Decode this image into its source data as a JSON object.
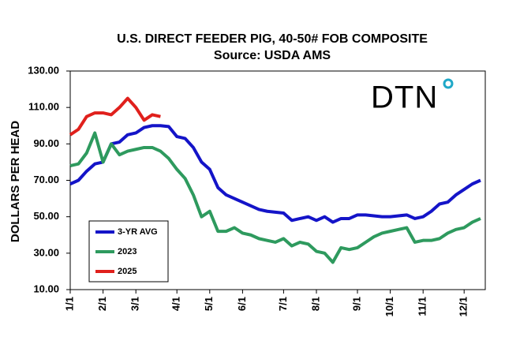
{
  "chart_data": {
    "type": "line",
    "title": "U.S. DIRECT FEEDER PIG, 40-50# FOB COMPOSITE",
    "subtitle": "Source:  USDA AMS",
    "y_label": "DOLLARS PER HEAD",
    "logo": "DTN",
    "categories": [
      "1/1",
      null,
      null,
      null,
      "2/1",
      null,
      null,
      null,
      "3/1",
      null,
      null,
      null,
      null,
      "4/1",
      null,
      null,
      null,
      "5/1",
      null,
      null,
      null,
      "6/1",
      null,
      null,
      null,
      null,
      "7/1",
      null,
      null,
      null,
      "8/1",
      null,
      null,
      null,
      null,
      "9/1",
      null,
      null,
      null,
      "10/1",
      null,
      null,
      null,
      "11/1",
      null,
      null,
      null,
      null,
      "12/1",
      null,
      null
    ],
    "series": [
      {
        "name": "3-YR AVG",
        "color": "#1414c8",
        "values": [
          68,
          70,
          75,
          79,
          80,
          90,
          91,
          95,
          96,
          99,
          100,
          100,
          99.5,
          94,
          93,
          88,
          80,
          76,
          66,
          62,
          60,
          58,
          56,
          54,
          53,
          52.5,
          52,
          48,
          49,
          50,
          48,
          50,
          47,
          49,
          49,
          51,
          51,
          50.5,
          50,
          50,
          50.5,
          51,
          49,
          50,
          53,
          57,
          58,
          62,
          65,
          68,
          70
        ]
      },
      {
        "name": "2023",
        "color": "#2e9a5e",
        "values": [
          78,
          79,
          85,
          96,
          80,
          90,
          84,
          86,
          87,
          88,
          88,
          86,
          82,
          76,
          71,
          62,
          50,
          53,
          42,
          42,
          44,
          41,
          40,
          38,
          37,
          36,
          38,
          34,
          36,
          35,
          31,
          30,
          25,
          33,
          32,
          33,
          36,
          39,
          41,
          42,
          43,
          44,
          36,
          37,
          37,
          38,
          41,
          43,
          44,
          47,
          49
        ]
      },
      {
        "name": "2025",
        "color": "#e0201c",
        "values": [
          95,
          98,
          105,
          107,
          107,
          106,
          110,
          115,
          110,
          103,
          106,
          105,
          null,
          null,
          null,
          null,
          null,
          null,
          null,
          null,
          null,
          null,
          null,
          null,
          null,
          null,
          null,
          null,
          null,
          null,
          null,
          null,
          null,
          null,
          null,
          null,
          null,
          null,
          null,
          null,
          null,
          null,
          null,
          null,
          null,
          null,
          null,
          null,
          null,
          null,
          null
        ]
      }
    ],
    "ylim": [
      10,
      130
    ],
    "yticks": [
      {
        "value": 10,
        "label": "10.00"
      },
      {
        "value": 30,
        "label": "30.00"
      },
      {
        "value": 50,
        "label": "50.00"
      },
      {
        "value": 70,
        "label": "70.00"
      },
      {
        "value": 90,
        "label": "90.00"
      },
      {
        "value": 110,
        "label": "110.00"
      },
      {
        "value": 130,
        "label": "130.00"
      }
    ],
    "grid": false,
    "legend": "lower-left"
  }
}
